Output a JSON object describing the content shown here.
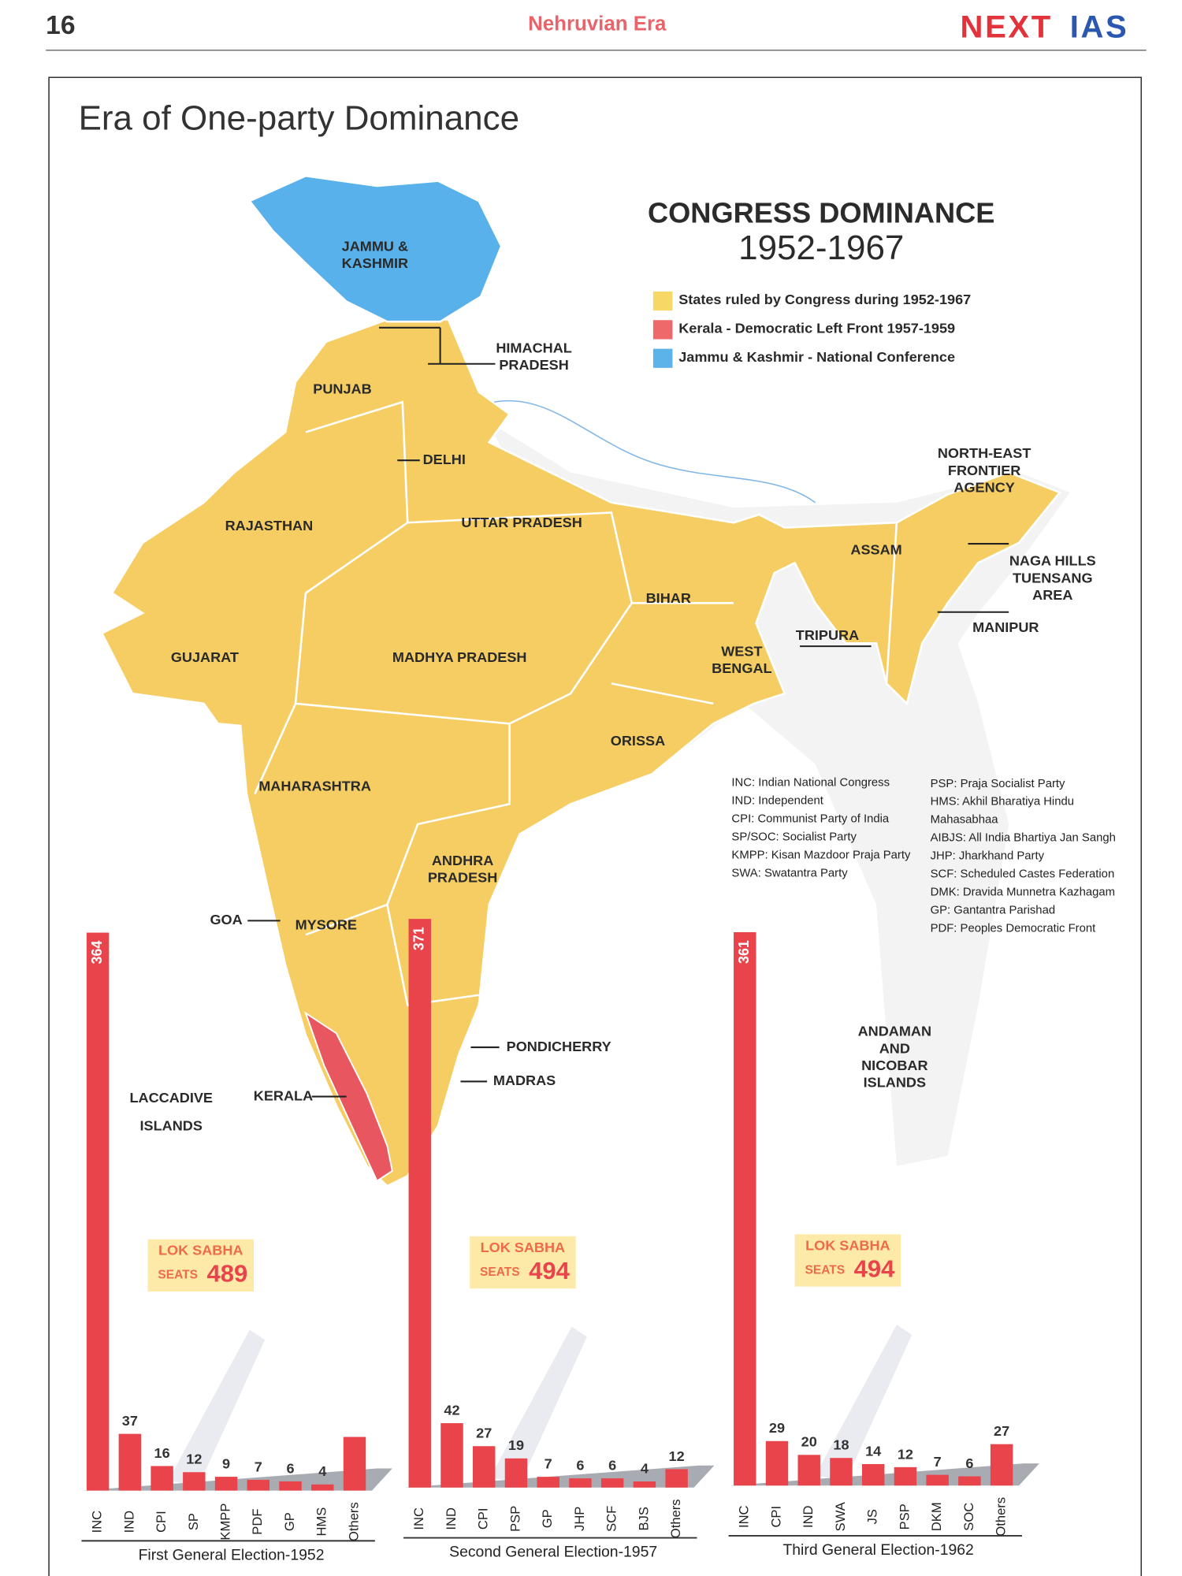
{
  "header": {
    "page_number": "16",
    "section": "Nehruvian Era",
    "logo_first": "NEXT",
    "logo_second": "IAS"
  },
  "title": "Era of One-party Dominance",
  "map": {
    "heading": "CONGRESS DOMINANCE",
    "period": "1952-1967",
    "legend": [
      {
        "label": "States ruled by Congress during 1952-1967",
        "color": "#f7d765"
      },
      {
        "label": "Kerala - Democratic Left Front 1957-1959",
        "color": "#ee6a6a"
      },
      {
        "label": "Jammu & Kashmir - National Conference",
        "color": "#5cb3ea"
      }
    ],
    "labels": [
      [
        "JAMMU &",
        "KASHMIR"
      ],
      [
        "HIMACHAL",
        "PRADESH"
      ],
      [
        "PUNJAB"
      ],
      [
        "DELHI"
      ],
      [
        "RAJASTHAN"
      ],
      [
        "UTTAR PRADESH"
      ],
      [
        "NORTH-EAST",
        "FRONTIER",
        "AGENCY"
      ],
      [
        "ASSAM"
      ],
      [
        "NAGA HILLS",
        "TUENSANG",
        "AREA"
      ],
      [
        "BIHAR"
      ],
      [
        "MANIPUR"
      ],
      [
        "TRIPURA"
      ],
      [
        "GUJARAT"
      ],
      [
        "MADHYA PRADESH"
      ],
      [
        "WEST",
        "BENGAL"
      ],
      [
        "ORISSA"
      ],
      [
        "MAHARASHTRA"
      ],
      [
        "ANDHRA",
        "PRADESH"
      ],
      [
        "GOA"
      ],
      [
        "MYSORE"
      ],
      [
        "PONDICHERRY"
      ],
      [
        "MADRAS"
      ],
      [
        "LACCADIVE",
        "ISLANDS"
      ],
      [
        "KERALA"
      ],
      [
        "ANDAMAN",
        "AND",
        "NICOBAR",
        "ISLANDS"
      ]
    ]
  },
  "abbreviations": {
    "left": [
      "INC: Indian National Congress",
      "IND: Independent",
      "CPI: Communist Party of India",
      "SP/SOC: Socialist Party",
      "KMPP: Kisan Mazdoor Praja Party",
      "SWA: Swatantra Party"
    ],
    "right": [
      "PSP: Praja Socialist Party",
      "HMS: Akhil Bharatiya Hindu",
      "Mahasabhaa",
      "AIBJS: All India Bhartiya Jan Sangh",
      "JHP: Jharkhand Party",
      "SCF: Scheduled Castes Federation",
      "DMK: Dravida Munnetra Kazhagam",
      "GP: Gantantra Parishad",
      "PDF: Peoples Democratic Front"
    ]
  },
  "chart_data": [
    {
      "type": "bar",
      "xlabel": "First General Election-1952",
      "color": "#e9444b",
      "box_title": "LOK SABHA",
      "box_seats_label": "SEATS",
      "total_seats": 489,
      "categories": [
        "INC",
        "IND",
        "CPI",
        "SP",
        "KMPP",
        "PDF",
        "GP",
        "HMS",
        "Others"
      ],
      "values": [
        364,
        37,
        16,
        12,
        9,
        7,
        6,
        4,
        35
      ],
      "value_labels": [
        "364",
        "37",
        "16",
        "12",
        "9",
        "7",
        "6",
        "4",
        null
      ]
    },
    {
      "type": "bar",
      "xlabel": "Second General Election-1957",
      "color": "#e9444b",
      "box_title": "LOK SABHA",
      "box_seats_label": "SEATS",
      "total_seats": 494,
      "categories": [
        "INC",
        "IND",
        "CPI",
        "PSP",
        "GP",
        "JHP",
        "SCF",
        "BJS",
        "Others"
      ],
      "values": [
        371,
        42,
        27,
        19,
        7,
        6,
        6,
        4,
        12
      ],
      "value_labels": [
        "371",
        "42",
        "27",
        "19",
        "7",
        "6",
        "6",
        "4",
        "12"
      ]
    },
    {
      "type": "bar",
      "xlabel": "Third General Election-1962",
      "color": "#e9444b",
      "box_title": "LOK SABHA",
      "box_seats_label": "SEATS",
      "total_seats": 494,
      "categories": [
        "INC",
        "CPI",
        "IND",
        "SWA",
        "JS",
        "PSP",
        "DKM",
        "SOC",
        "Others"
      ],
      "values": [
        361,
        29,
        20,
        18,
        14,
        12,
        7,
        6,
        27
      ],
      "value_labels": [
        "361",
        "29",
        "20",
        "18",
        "14",
        "12",
        "7",
        "6",
        "27"
      ]
    }
  ]
}
